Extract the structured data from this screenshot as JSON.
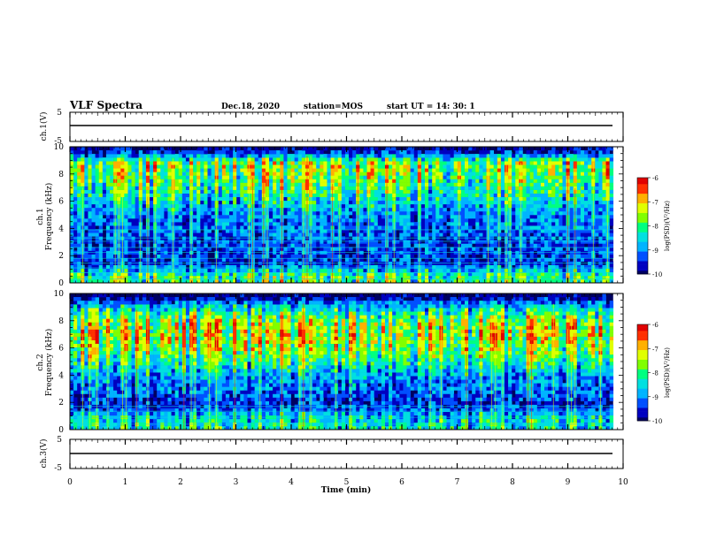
{
  "header": {
    "title": "VLF Spectra",
    "date": "Dec.18, 2020",
    "station": "station=MOS",
    "start": "start  UT =   14: 30: 1"
  },
  "chart_data": [
    {
      "type": "line",
      "panel": "ch1-waveform",
      "ylabel": "ch.1(V)",
      "ylim": [
        -5,
        5
      ],
      "yticks": [
        "5",
        "-5"
      ],
      "xlim": [
        0,
        10
      ],
      "series": [
        {
          "x": [
            0,
            9.8
          ],
          "y": [
            0,
            0
          ]
        }
      ]
    },
    {
      "type": "heatmap",
      "panel": "ch1-spectrogram",
      "ylabel_line1": "ch.1",
      "ylabel_line2": "Frequency (kHz)",
      "ylim": [
        0,
        10
      ],
      "yticks": [
        "0",
        "2",
        "4",
        "6",
        "8",
        "10"
      ],
      "xlim": [
        0,
        10
      ],
      "data_xmax": 9.82,
      "colorbar": {
        "label": "log(PSD)(V²/Hz)",
        "range": [
          -10,
          -6
        ],
        "ticks": [
          "-6",
          "-7",
          "-8",
          "-9",
          "-10"
        ]
      },
      "intensity_profile": [
        {
          "f": 0.5,
          "level": 0.55
        },
        {
          "f": 1.0,
          "level": 0.35
        },
        {
          "f": 1.5,
          "level": 0.15
        },
        {
          "f": 2.0,
          "level": 0.2
        },
        {
          "f": 3.0,
          "level": 0.2
        },
        {
          "f": 4.0,
          "level": 0.25
        },
        {
          "f": 5.0,
          "level": 0.3
        },
        {
          "f": 6.0,
          "level": 0.42
        },
        {
          "f": 7.0,
          "level": 0.55
        },
        {
          "f": 8.0,
          "level": 0.62
        },
        {
          "f": 8.8,
          "level": 0.66
        },
        {
          "f": 9.5,
          "level": 0.2
        },
        {
          "f": 10.0,
          "level": 0.0
        }
      ],
      "horizontal_lines_khz": [
        0.3,
        0.75,
        1.1,
        1.45,
        1.8,
        2.25,
        2.6,
        3.05,
        3.3,
        3.9
      ]
    },
    {
      "type": "heatmap",
      "panel": "ch2-spectrogram",
      "ylabel_line1": "ch.2",
      "ylabel_line2": "Frequency (kHz)",
      "ylim": [
        0,
        10
      ],
      "yticks": [
        "0",
        "2",
        "4",
        "6",
        "8",
        "10"
      ],
      "xlim": [
        0,
        10
      ],
      "data_xmax": 9.82,
      "colorbar": {
        "label": "log(PSD)(V²/Hz)",
        "range": [
          -10,
          -6
        ],
        "ticks": [
          "-6",
          "-7",
          "-8",
          "-9",
          "-10"
        ]
      },
      "intensity_profile": [
        {
          "f": 0.5,
          "level": 0.45
        },
        {
          "f": 1.0,
          "level": 0.4
        },
        {
          "f": 1.5,
          "level": 0.2
        },
        {
          "f": 2.0,
          "level": 0.15
        },
        {
          "f": 3.0,
          "level": 0.25
        },
        {
          "f": 4.0,
          "level": 0.32
        },
        {
          "f": 5.0,
          "level": 0.5
        },
        {
          "f": 6.0,
          "level": 0.65
        },
        {
          "f": 7.0,
          "level": 0.72
        },
        {
          "f": 8.0,
          "level": 0.66
        },
        {
          "f": 9.0,
          "level": 0.4
        },
        {
          "f": 9.6,
          "level": 0.1
        },
        {
          "f": 10.0,
          "level": 0.0
        }
      ],
      "horizontal_lines_khz": [
        0.4,
        0.9,
        1.35,
        1.7
      ]
    },
    {
      "type": "line",
      "panel": "ch3-waveform",
      "ylabel": "ch.3(V)",
      "ylim": [
        -5,
        5
      ],
      "yticks": [
        "5",
        "-5"
      ],
      "xlim": [
        0,
        10
      ],
      "series": [
        {
          "x": [
            0,
            9.8
          ],
          "y": [
            0,
            0
          ]
        }
      ]
    }
  ],
  "x_axis": {
    "label": "Time  (min)",
    "ticks": [
      "0",
      "1",
      "2",
      "3",
      "4",
      "5",
      "6",
      "7",
      "8",
      "9",
      "10"
    ]
  },
  "colormap": [
    "#000060",
    "#0000c0",
    "#0050ff",
    "#00b4ff",
    "#00e0e0",
    "#00ff80",
    "#80ff00",
    "#e0ff00",
    "#ffb000",
    "#ff3000",
    "#e00000",
    "#ffffff"
  ]
}
